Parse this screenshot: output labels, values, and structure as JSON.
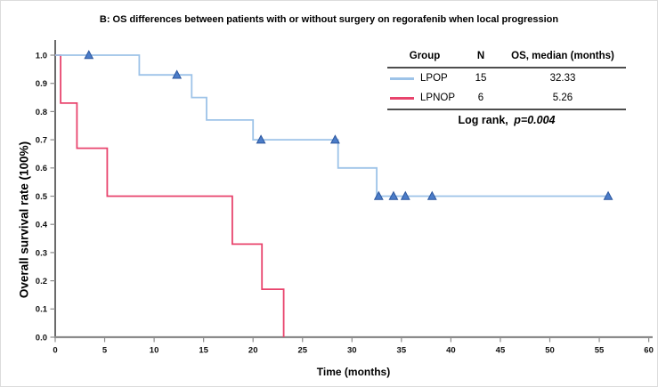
{
  "title": "B: OS differences between patients with or without surgery on regorafenib when local progression",
  "axes": {
    "x": {
      "label": "Time (months)",
      "tick_labels": [
        "0",
        "5",
        "10",
        "15",
        "20",
        "25",
        "30",
        "35",
        "40",
        "45",
        "50",
        "55",
        "60"
      ],
      "min": 0,
      "max": 60
    },
    "y": {
      "label": "Overall survival rate (100%)",
      "tick_labels": [
        "1.0",
        "0.9",
        "0.8",
        "0.7",
        "0.6",
        "0.5",
        "0.4",
        "0.3",
        "0.2",
        "0.1",
        "0.0"
      ],
      "min": 0,
      "max": 1
    }
  },
  "legend": {
    "headers": [
      "Group",
      "N",
      "OS, median (months)"
    ],
    "rows": [
      {
        "group": "LPOP",
        "n": "15",
        "median": "32.33",
        "color": "#9DC3E8"
      },
      {
        "group": "LPNOP",
        "n": "6",
        "median": "5.26",
        "color": "#E8446D"
      }
    ],
    "log_rank_label": "Log rank,",
    "p_value": "p=0.004"
  },
  "chart_data": {
    "type": "line",
    "subtype": "kaplan-meier-step",
    "title": "B: OS differences between patients with or without surgery on regorafenib when local progression",
    "xlabel": "Time (months)",
    "ylabel": "Overall survival rate (100%)",
    "xlim": [
      0,
      60
    ],
    "ylim": [
      0,
      1.0
    ],
    "grid": false,
    "legend_position": "top-right-table",
    "test": "Log rank",
    "p_value": 0.004,
    "series": [
      {
        "name": "LPOP",
        "n": 15,
        "median_os_months": 32.33,
        "color": "#9DC3E8",
        "steps": [
          [
            0,
            1.0
          ],
          [
            8.5,
            1.0
          ],
          [
            8.5,
            0.93
          ],
          [
            13.8,
            0.93
          ],
          [
            13.8,
            0.85
          ],
          [
            15.3,
            0.85
          ],
          [
            15.3,
            0.77
          ],
          [
            20.0,
            0.77
          ],
          [
            20.0,
            0.7
          ],
          [
            28.6,
            0.7
          ],
          [
            28.6,
            0.6
          ],
          [
            32.5,
            0.6
          ],
          [
            32.5,
            0.5
          ],
          [
            55.9,
            0.5
          ]
        ],
        "censored": [
          [
            3.4,
            1.0
          ],
          [
            12.3,
            0.93
          ],
          [
            20.8,
            0.7
          ],
          [
            28.3,
            0.7
          ],
          [
            32.7,
            0.5
          ],
          [
            34.2,
            0.5
          ],
          [
            35.4,
            0.5
          ],
          [
            38.1,
            0.5
          ],
          [
            55.9,
            0.5
          ]
        ],
        "censor_marker": "triangle-icon",
        "censor_fill": "#4B7CC8",
        "censor_stroke": "#2B569E"
      },
      {
        "name": "LPNOP",
        "n": 6,
        "median_os_months": 5.26,
        "color": "#E8446D",
        "steps": [
          [
            0,
            1.0
          ],
          [
            0.55,
            1.0
          ],
          [
            0.55,
            0.83
          ],
          [
            2.2,
            0.83
          ],
          [
            2.2,
            0.67
          ],
          [
            5.26,
            0.67
          ],
          [
            5.26,
            0.5
          ],
          [
            17.9,
            0.5
          ],
          [
            17.9,
            0.33
          ],
          [
            20.9,
            0.33
          ],
          [
            20.9,
            0.17
          ],
          [
            23.1,
            0.17
          ],
          [
            23.1,
            0.0
          ]
        ],
        "censored": [],
        "censor_marker": "none"
      }
    ]
  }
}
